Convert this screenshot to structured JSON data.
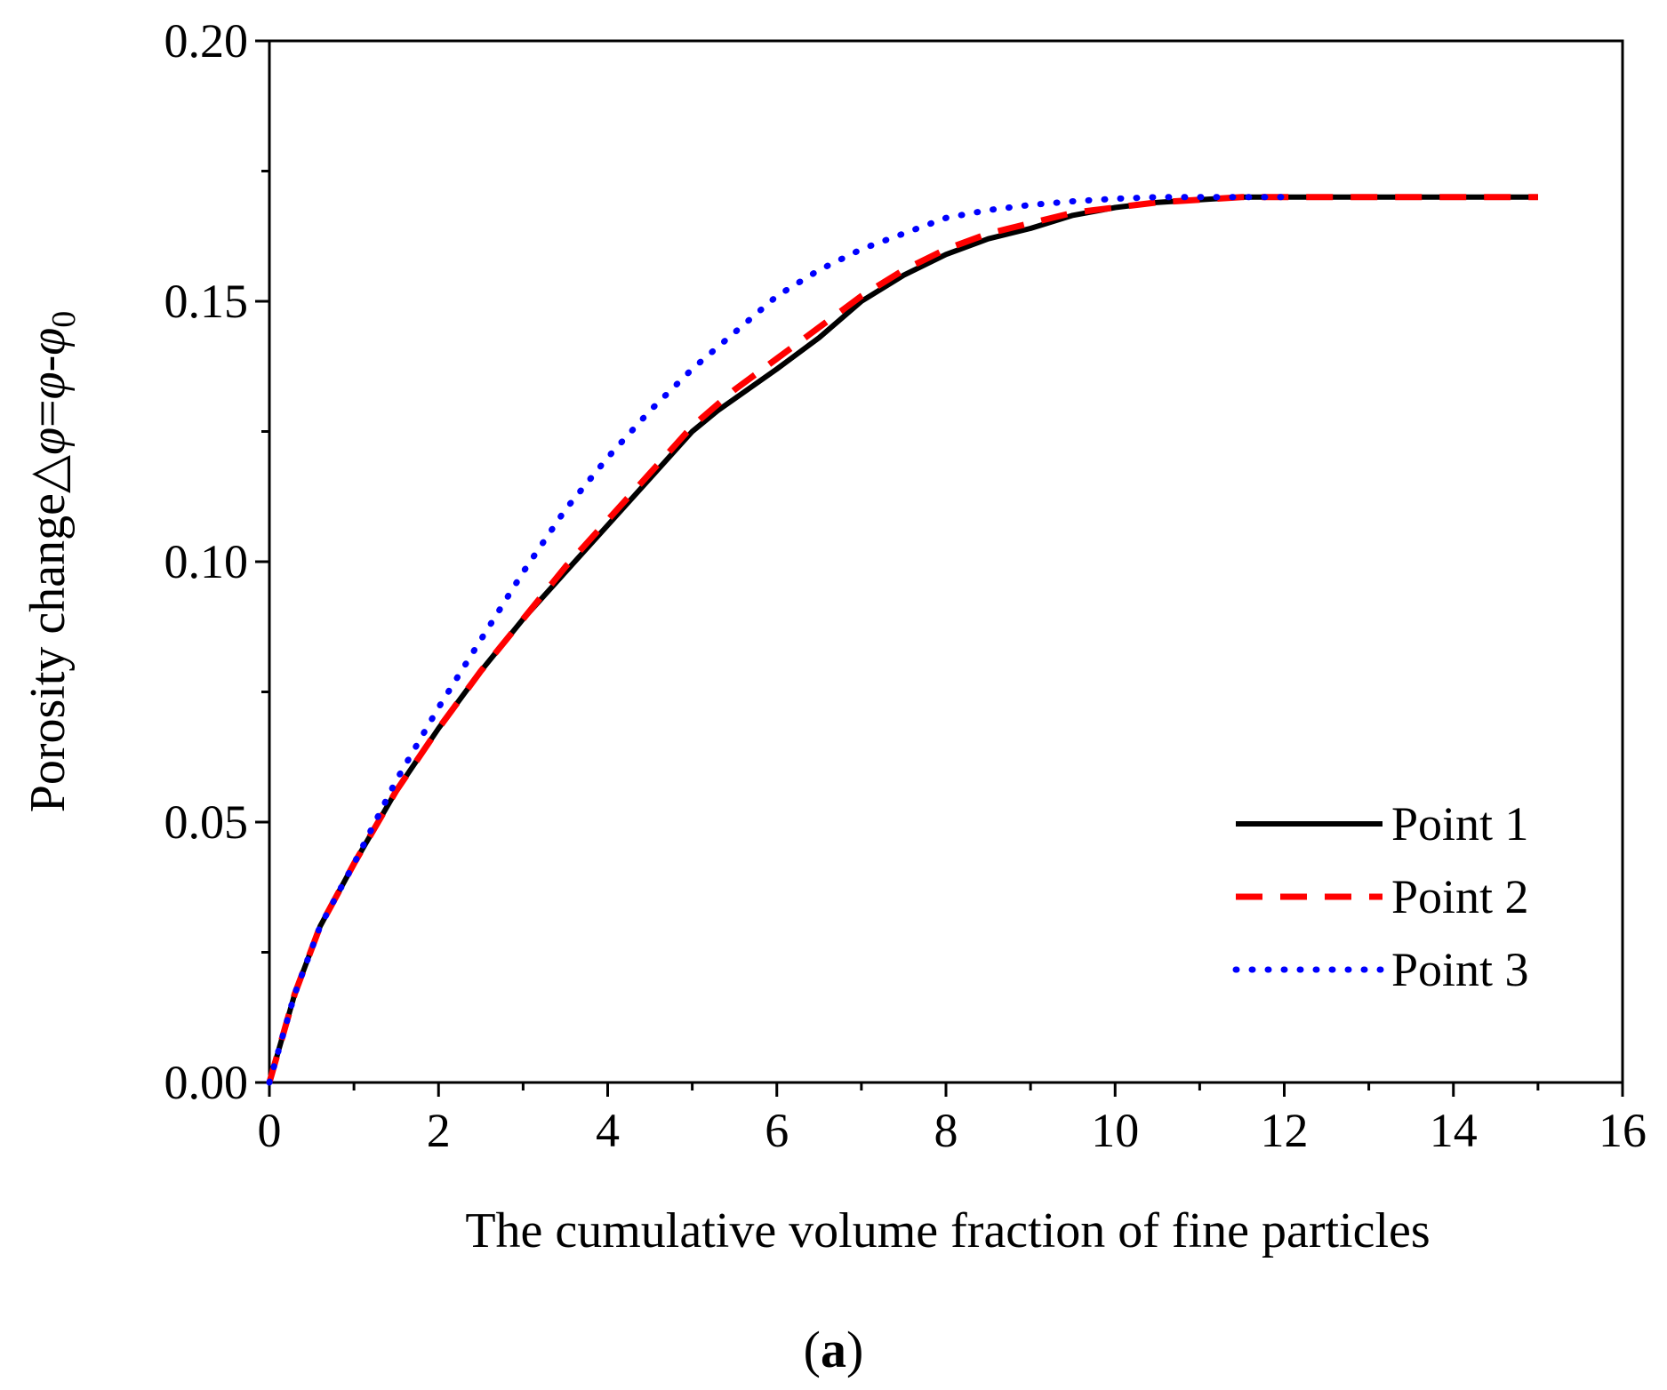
{
  "chart_data": {
    "type": "line",
    "title": "",
    "xlabel": "The cumulative volume fraction of fine particles",
    "ylabel": {
      "prefix": "Porosity change",
      "delta": "△",
      "phi": "φ",
      "eq": "=",
      "minus": "-",
      "sub": "0"
    },
    "xlim": [
      0,
      16
    ],
    "ylim": [
      0,
      0.2
    ],
    "x_ticks": [
      0,
      2,
      4,
      6,
      8,
      10,
      12,
      14,
      16
    ],
    "x_tick_labels": [
      "0",
      "2",
      "4",
      "6",
      "8",
      "10",
      "12",
      "14",
      "16"
    ],
    "y_ticks": [
      0,
      0.05,
      0.1,
      0.15,
      0.2
    ],
    "y_tick_labels": [
      "0.00",
      "0.05",
      "0.10",
      "0.15",
      "0.20"
    ],
    "legend_position": "bottom-right",
    "series": [
      {
        "name": "Point 1",
        "color": "#000000",
        "style": "solid",
        "x": [
          0,
          0.3,
          0.6,
          1,
          1.5,
          2,
          2.5,
          3,
          3.5,
          4,
          4.5,
          5,
          5.3,
          6,
          6.5,
          7,
          7.5,
          8,
          8.5,
          9,
          9.5,
          10,
          10.5,
          11,
          11.5,
          12,
          13,
          14,
          15
        ],
        "values": [
          0,
          0.017,
          0.03,
          0.042,
          0.056,
          0.068,
          0.079,
          0.089,
          0.098,
          0.107,
          0.116,
          0.125,
          0.129,
          0.137,
          0.143,
          0.15,
          0.155,
          0.159,
          0.162,
          0.164,
          0.1665,
          0.168,
          0.169,
          0.1695,
          0.17,
          0.17,
          0.17,
          0.17,
          0.17
        ]
      },
      {
        "name": "Point 2",
        "color": "#ff0000",
        "style": "dashed",
        "x": [
          0,
          0.3,
          0.6,
          1,
          1.5,
          2,
          2.5,
          3,
          3.5,
          4,
          4.5,
          5,
          5.5,
          6,
          6.5,
          7,
          7.5,
          8,
          8.5,
          9,
          9.5,
          10,
          10.5,
          11,
          11.5,
          12,
          13,
          14,
          15
        ],
        "values": [
          0,
          0.017,
          0.03,
          0.042,
          0.056,
          0.068,
          0.079,
          0.089,
          0.099,
          0.108,
          0.117,
          0.126,
          0.133,
          0.139,
          0.145,
          0.151,
          0.156,
          0.16,
          0.163,
          0.165,
          0.167,
          0.168,
          0.169,
          0.1695,
          0.17,
          0.17,
          0.17,
          0.17,
          0.17
        ]
      },
      {
        "name": "Point 3",
        "color": "#0000ff",
        "style": "dotted",
        "x": [
          0,
          0.3,
          0.6,
          1,
          1.5,
          2,
          2.5,
          3,
          3.5,
          4,
          4.5,
          5,
          5.5,
          6,
          6.5,
          7,
          7.5,
          8,
          8.5,
          9,
          9.5,
          10,
          10.5,
          11,
          11.5,
          12
        ],
        "values": [
          0,
          0.017,
          0.03,
          0.042,
          0.058,
          0.072,
          0.085,
          0.098,
          0.11,
          0.12,
          0.129,
          0.137,
          0.144,
          0.151,
          0.156,
          0.16,
          0.163,
          0.166,
          0.1675,
          0.1685,
          0.1692,
          0.1697,
          0.17,
          0.17,
          0.17,
          0.17
        ]
      }
    ]
  },
  "caption": {
    "open": "(",
    "letter": "a",
    "close": ")"
  }
}
